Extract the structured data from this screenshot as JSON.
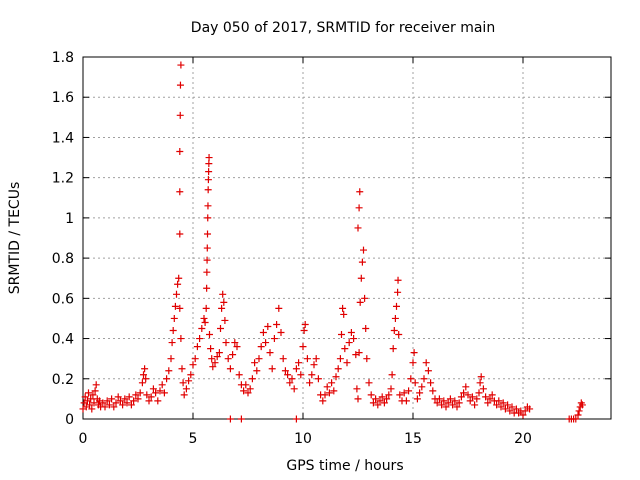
{
  "chart_data": {
    "type": "scatter",
    "title": "Day 050 of 2017, SRMTID for receiver main",
    "xlabel": "GPS time / hours",
    "ylabel": "SRMTID / TECUs",
    "xlim": [
      0,
      24
    ],
    "ylim": [
      0,
      1.8
    ],
    "x_ticks": [
      0,
      5,
      10,
      15,
      20
    ],
    "y_ticks": [
      0,
      0.2,
      0.4,
      0.6,
      0.8,
      1,
      1.2,
      1.4,
      1.6,
      1.8
    ],
    "x_tick_labels": [
      "0",
      "5",
      "10",
      "15",
      "20"
    ],
    "y_tick_labels": [
      "0",
      "0.2",
      "0.4",
      "0.6",
      "0.8",
      "1",
      "1.2",
      "1.4",
      "1.6",
      "1.8"
    ],
    "grid": true,
    "marker": "+",
    "color": "#e00000",
    "series": [
      {
        "name": "SRMTID",
        "points": [
          [
            0.0,
            0.05
          ],
          [
            0.05,
            0.08
          ],
          [
            0.1,
            0.11
          ],
          [
            0.15,
            0.06
          ],
          [
            0.2,
            0.09
          ],
          [
            0.25,
            0.13
          ],
          [
            0.3,
            0.07
          ],
          [
            0.35,
            0.1
          ],
          [
            0.4,
            0.05
          ],
          [
            0.45,
            0.12
          ],
          [
            0.5,
            0.08
          ],
          [
            0.55,
            0.14
          ],
          [
            0.6,
            0.17
          ],
          [
            0.65,
            0.1
          ],
          [
            0.7,
            0.07
          ],
          [
            0.75,
            0.09
          ],
          [
            0.8,
            0.06
          ],
          [
            0.9,
            0.08
          ],
          [
            1.0,
            0.06
          ],
          [
            1.1,
            0.09
          ],
          [
            1.2,
            0.07
          ],
          [
            1.3,
            0.1
          ],
          [
            1.4,
            0.06
          ],
          [
            1.5,
            0.08
          ],
          [
            1.6,
            0.11
          ],
          [
            1.7,
            0.09
          ],
          [
            1.8,
            0.07
          ],
          [
            1.9,
            0.1
          ],
          [
            2.0,
            0.08
          ],
          [
            2.1,
            0.11
          ],
          [
            2.2,
            0.07
          ],
          [
            2.3,
            0.09
          ],
          [
            2.4,
            0.12
          ],
          [
            2.5,
            0.1
          ],
          [
            2.6,
            0.13
          ],
          [
            2.7,
            0.18
          ],
          [
            2.75,
            0.22
          ],
          [
            2.8,
            0.25
          ],
          [
            2.85,
            0.2
          ],
          [
            2.9,
            0.12
          ],
          [
            3.0,
            0.09
          ],
          [
            3.1,
            0.11
          ],
          [
            3.2,
            0.15
          ],
          [
            3.3,
            0.13
          ],
          [
            3.4,
            0.09
          ],
          [
            3.5,
            0.14
          ],
          [
            3.6,
            0.17
          ],
          [
            3.7,
            0.13
          ],
          [
            3.8,
            0.2
          ],
          [
            3.9,
            0.24
          ],
          [
            4.0,
            0.3
          ],
          [
            4.05,
            0.38
          ],
          [
            4.1,
            0.44
          ],
          [
            4.15,
            0.5
          ],
          [
            4.2,
            0.56
          ],
          [
            4.25,
            0.62
          ],
          [
            4.3,
            0.67
          ],
          [
            4.35,
            0.7
          ],
          [
            4.4,
            0.55
          ],
          [
            4.45,
            0.4
          ],
          [
            4.5,
            0.25
          ],
          [
            4.55,
            0.18
          ],
          [
            4.4,
            0.92
          ],
          [
            4.4,
            1.13
          ],
          [
            4.4,
            1.33
          ],
          [
            4.42,
            1.51
          ],
          [
            4.43,
            1.66
          ],
          [
            4.45,
            1.76
          ],
          [
            4.6,
            0.12
          ],
          [
            4.7,
            0.15
          ],
          [
            4.8,
            0.19
          ],
          [
            4.9,
            0.22
          ],
          [
            5.0,
            0.27
          ],
          [
            5.1,
            0.3
          ],
          [
            5.2,
            0.36
          ],
          [
            5.3,
            0.4
          ],
          [
            5.4,
            0.45
          ],
          [
            5.5,
            0.5
          ],
          [
            5.55,
            0.48
          ],
          [
            5.6,
            0.55
          ],
          [
            5.62,
            0.65
          ],
          [
            5.63,
            0.73
          ],
          [
            5.64,
            0.79
          ],
          [
            5.65,
            0.85
          ],
          [
            5.66,
            0.92
          ],
          [
            5.67,
            1.0
          ],
          [
            5.68,
            1.06
          ],
          [
            5.69,
            1.14
          ],
          [
            5.7,
            1.19
          ],
          [
            5.71,
            1.23
          ],
          [
            5.72,
            1.27
          ],
          [
            5.73,
            1.3
          ],
          [
            5.75,
            0.42
          ],
          [
            5.8,
            0.35
          ],
          [
            5.85,
            0.3
          ],
          [
            5.9,
            0.26
          ],
          [
            6.0,
            0.28
          ],
          [
            6.1,
            0.31
          ],
          [
            6.2,
            0.33
          ],
          [
            6.25,
            0.45
          ],
          [
            6.3,
            0.55
          ],
          [
            6.35,
            0.62
          ],
          [
            6.4,
            0.58
          ],
          [
            6.45,
            0.49
          ],
          [
            6.5,
            0.38
          ],
          [
            6.6,
            0.3
          ],
          [
            6.7,
            0.25
          ],
          [
            6.8,
            0.32
          ],
          [
            6.9,
            0.38
          ],
          [
            7.0,
            0.36
          ],
          [
            7.1,
            0.22
          ],
          [
            7.2,
            0.17
          ],
          [
            7.3,
            0.14
          ],
          [
            7.4,
            0.17
          ],
          [
            7.5,
            0.13
          ],
          [
            7.6,
            0.15
          ],
          [
            7.7,
            0.2
          ],
          [
            7.8,
            0.28
          ],
          [
            7.9,
            0.24
          ],
          [
            8.0,
            0.3
          ],
          [
            8.1,
            0.36
          ],
          [
            8.2,
            0.43
          ],
          [
            8.3,
            0.38
          ],
          [
            8.4,
            0.46
          ],
          [
            8.5,
            0.33
          ],
          [
            8.6,
            0.25
          ],
          [
            8.7,
            0.4
          ],
          [
            8.8,
            0.47
          ],
          [
            8.9,
            0.55
          ],
          [
            9.0,
            0.43
          ],
          [
            9.1,
            0.3
          ],
          [
            9.2,
            0.24
          ],
          [
            9.3,
            0.22
          ],
          [
            9.4,
            0.18
          ],
          [
            9.5,
            0.2
          ],
          [
            9.6,
            0.15
          ],
          [
            9.7,
            0.25
          ],
          [
            9.8,
            0.28
          ],
          [
            9.9,
            0.22
          ],
          [
            10.0,
            0.36
          ],
          [
            10.05,
            0.44
          ],
          [
            10.1,
            0.47
          ],
          [
            10.2,
            0.3
          ],
          [
            10.3,
            0.18
          ],
          [
            10.4,
            0.22
          ],
          [
            10.5,
            0.27
          ],
          [
            10.6,
            0.3
          ],
          [
            10.7,
            0.2
          ],
          [
            10.8,
            0.12
          ],
          [
            10.9,
            0.09
          ],
          [
            11.0,
            0.12
          ],
          [
            11.1,
            0.16
          ],
          [
            11.2,
            0.13
          ],
          [
            11.3,
            0.18
          ],
          [
            11.4,
            0.14
          ],
          [
            11.5,
            0.21
          ],
          [
            11.6,
            0.25
          ],
          [
            11.7,
            0.3
          ],
          [
            11.75,
            0.42
          ],
          [
            11.8,
            0.55
          ],
          [
            11.85,
            0.52
          ],
          [
            11.9,
            0.35
          ],
          [
            12.0,
            0.28
          ],
          [
            12.1,
            0.38
          ],
          [
            12.2,
            0.43
          ],
          [
            12.3,
            0.4
          ],
          [
            12.4,
            0.32
          ],
          [
            12.45,
            0.15
          ],
          [
            12.5,
            0.1
          ],
          [
            12.55,
            0.33
          ],
          [
            12.6,
            0.58
          ],
          [
            12.65,
            0.7
          ],
          [
            12.7,
            0.78
          ],
          [
            12.75,
            0.84
          ],
          [
            12.5,
            0.95
          ],
          [
            12.55,
            1.05
          ],
          [
            12.58,
            1.13
          ],
          [
            12.8,
            0.6
          ],
          [
            12.85,
            0.45
          ],
          [
            12.9,
            0.3
          ],
          [
            13.0,
            0.18
          ],
          [
            13.1,
            0.12
          ],
          [
            13.2,
            0.08
          ],
          [
            13.3,
            0.1
          ],
          [
            13.4,
            0.07
          ],
          [
            13.5,
            0.09
          ],
          [
            13.6,
            0.11
          ],
          [
            13.7,
            0.08
          ],
          [
            13.8,
            0.1
          ],
          [
            13.9,
            0.12
          ],
          [
            14.0,
            0.15
          ],
          [
            14.05,
            0.22
          ],
          [
            14.1,
            0.35
          ],
          [
            14.15,
            0.44
          ],
          [
            14.2,
            0.5
          ],
          [
            14.25,
            0.56
          ],
          [
            14.3,
            0.63
          ],
          [
            14.32,
            0.69
          ],
          [
            14.35,
            0.42
          ],
          [
            14.4,
            0.12
          ],
          [
            14.5,
            0.09
          ],
          [
            14.6,
            0.13
          ],
          [
            14.7,
            0.09
          ],
          [
            14.8,
            0.14
          ],
          [
            14.9,
            0.2
          ],
          [
            15.0,
            0.28
          ],
          [
            15.05,
            0.33
          ],
          [
            15.1,
            0.18
          ],
          [
            15.2,
            0.1
          ],
          [
            15.3,
            0.13
          ],
          [
            15.4,
            0.16
          ],
          [
            15.5,
            0.2
          ],
          [
            15.6,
            0.28
          ],
          [
            15.7,
            0.24
          ],
          [
            15.8,
            0.18
          ],
          [
            15.9,
            0.14
          ],
          [
            16.0,
            0.1
          ],
          [
            16.1,
            0.08
          ],
          [
            16.2,
            0.1
          ],
          [
            16.3,
            0.07
          ],
          [
            16.4,
            0.09
          ],
          [
            16.5,
            0.06
          ],
          [
            16.6,
            0.08
          ],
          [
            16.7,
            0.1
          ],
          [
            16.8,
            0.07
          ],
          [
            16.9,
            0.09
          ],
          [
            17.0,
            0.06
          ],
          [
            17.1,
            0.08
          ],
          [
            17.2,
            0.11
          ],
          [
            17.3,
            0.13
          ],
          [
            17.4,
            0.16
          ],
          [
            17.5,
            0.12
          ],
          [
            17.6,
            0.09
          ],
          [
            17.7,
            0.11
          ],
          [
            17.8,
            0.07
          ],
          [
            17.9,
            0.1
          ],
          [
            18.0,
            0.13
          ],
          [
            18.05,
            0.18
          ],
          [
            18.1,
            0.21
          ],
          [
            18.2,
            0.15
          ],
          [
            18.3,
            0.11
          ],
          [
            18.4,
            0.08
          ],
          [
            18.5,
            0.1
          ],
          [
            18.6,
            0.12
          ],
          [
            18.7,
            0.09
          ],
          [
            18.8,
            0.07
          ],
          [
            18.9,
            0.09
          ],
          [
            19.0,
            0.06
          ],
          [
            19.1,
            0.08
          ],
          [
            19.2,
            0.05
          ],
          [
            19.3,
            0.07
          ],
          [
            19.4,
            0.04
          ],
          [
            19.5,
            0.06
          ],
          [
            19.6,
            0.03
          ],
          [
            19.7,
            0.05
          ],
          [
            19.8,
            0.03
          ],
          [
            19.9,
            0.04
          ],
          [
            20.0,
            0.02
          ],
          [
            20.1,
            0.04
          ],
          [
            20.2,
            0.06
          ],
          [
            20.3,
            0.05
          ],
          [
            22.1,
            0.0
          ],
          [
            22.2,
            0.0
          ],
          [
            22.3,
            0.0
          ],
          [
            22.4,
            0.0
          ],
          [
            22.5,
            0.02
          ],
          [
            22.55,
            0.04
          ],
          [
            22.6,
            0.06
          ],
          [
            22.65,
            0.08
          ],
          [
            22.7,
            0.07
          ],
          [
            6.7,
            0.0
          ],
          [
            7.2,
            0.0
          ],
          [
            9.7,
            0.0
          ]
        ]
      }
    ]
  }
}
